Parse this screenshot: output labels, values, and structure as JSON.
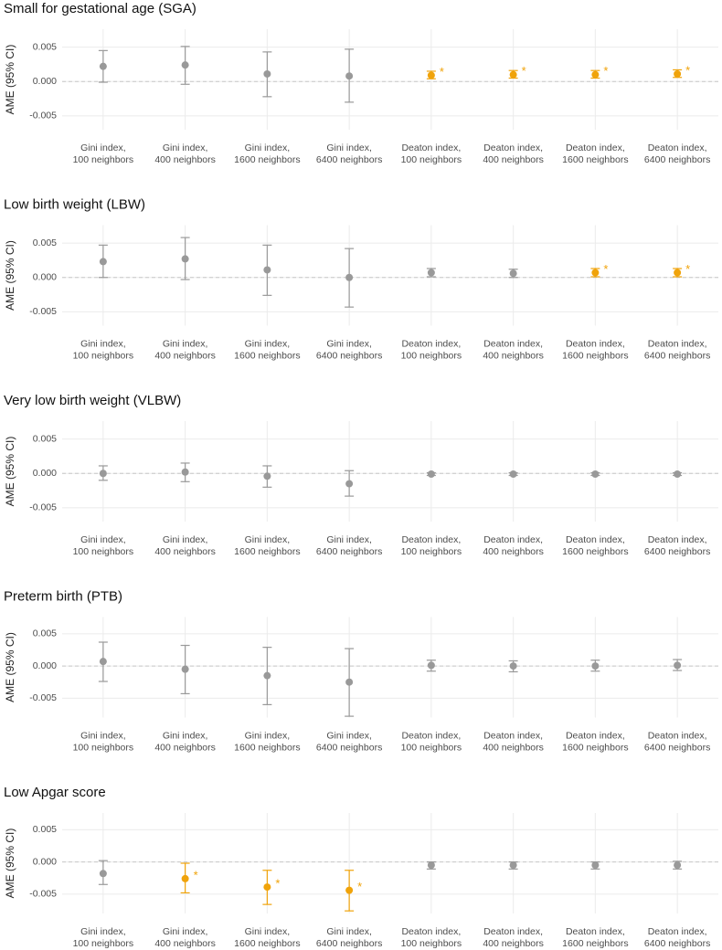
{
  "chart_data": [
    {
      "type": "errorbar",
      "title": "Small for gestational age (SGA)",
      "y_label": "AME (95% CI)",
      "categories": [
        [
          "Gini index,",
          "100 neighbors"
        ],
        [
          "Gini index,",
          "400 neighbors"
        ],
        [
          "Gini index,",
          "1600 neighbors"
        ],
        [
          "Gini index,",
          "6400 neighbors"
        ],
        [
          "Deaton index,",
          "100 neighbors"
        ],
        [
          "Deaton index,",
          "400 neighbors"
        ],
        [
          "Deaton index,",
          "1600 neighbors"
        ],
        [
          "Deaton index,",
          "6400 neighbors"
        ]
      ],
      "values": [
        0.0022,
        0.0024,
        0.0011,
        0.0008,
        0.0009,
        0.001,
        0.001,
        0.0011
      ],
      "lower": [
        -0.0001,
        -0.0004,
        -0.0022,
        -0.003,
        0.0004,
        0.0005,
        0.0005,
        0.0006
      ],
      "upper": [
        0.0045,
        0.0051,
        0.0043,
        0.0047,
        0.0015,
        0.0016,
        0.0016,
        0.0017
      ],
      "colors": [
        "#999999",
        "#999999",
        "#999999",
        "#999999",
        "#f0a30a",
        "#f0a30a",
        "#f0a30a",
        "#f0a30a"
      ],
      "markers": [
        null,
        null,
        null,
        null,
        "*",
        "*",
        "*",
        "*"
      ],
      "ylim": [
        -0.007,
        0.0076
      ],
      "yticks": [
        -0.005,
        {
          "value": 0,
          "label": "0.000"
        },
        0.005
      ],
      "grid": true
    },
    {
      "type": "errorbar",
      "title": "Low birth weight (LBW)",
      "y_label": "AME (95% CI)",
      "categories": [
        [
          "Gini index,",
          "100 neighbors"
        ],
        [
          "Gini index,",
          "400 neighbors"
        ],
        [
          "Gini index,",
          "1600 neighbors"
        ],
        [
          "Gini index,",
          "6400 neighbors"
        ],
        [
          "Deaton index,",
          "100 neighbors"
        ],
        [
          "Deaton index,",
          "400 neighbors"
        ],
        [
          "Deaton index,",
          "1600 neighbors"
        ],
        [
          "Deaton index,",
          "6400 neighbors"
        ]
      ],
      "values": [
        0.0023,
        0.0027,
        0.0011,
        0.0,
        0.0007,
        0.0006,
        0.0007,
        0.0007
      ],
      "lower": [
        0.0,
        -0.0003,
        -0.0026,
        -0.0043,
        0.0001,
        0.0,
        0.0001,
        0.0001
      ],
      "upper": [
        0.0047,
        0.0058,
        0.0047,
        0.0042,
        0.0013,
        0.0012,
        0.0013,
        0.0013
      ],
      "colors": [
        "#999999",
        "#999999",
        "#999999",
        "#999999",
        "#999999",
        "#999999",
        "#f0a30a",
        "#f0a30a"
      ],
      "markers": [
        null,
        null,
        null,
        null,
        null,
        null,
        "*",
        "*"
      ],
      "ylim": [
        -0.007,
        0.0076
      ],
      "yticks": [
        -0.005,
        {
          "value": 0,
          "label": "0.000"
        },
        0.005
      ],
      "grid": true
    },
    {
      "type": "errorbar",
      "title": "Very low birth weight (VLBW)",
      "y_label": "AME (95% CI)",
      "categories": [
        [
          "Gini index,",
          "100 neighbors"
        ],
        [
          "Gini index,",
          "400 neighbors"
        ],
        [
          "Gini index,",
          "1600 neighbors"
        ],
        [
          "Gini index,",
          "6400 neighbors"
        ],
        [
          "Deaton index,",
          "100 neighbors"
        ],
        [
          "Deaton index,",
          "400 neighbors"
        ],
        [
          "Deaton index,",
          "1600 neighbors"
        ],
        [
          "Deaton index,",
          "6400 neighbors"
        ]
      ],
      "values": [
        0.0,
        0.0002,
        -0.0004,
        -0.0015,
        -0.0001,
        -0.0001,
        -0.0001,
        -0.0001
      ],
      "lower": [
        -0.001,
        -0.0012,
        -0.002,
        -0.0033,
        -0.0003,
        -0.0003,
        -0.0003,
        -0.0003
      ],
      "upper": [
        0.0011,
        0.0015,
        0.0011,
        0.0004,
        0.0001,
        0.0001,
        0.0001,
        0.0001
      ],
      "colors": [
        "#999999",
        "#999999",
        "#999999",
        "#999999",
        "#999999",
        "#999999",
        "#999999",
        "#999999"
      ],
      "markers": [
        null,
        null,
        null,
        null,
        null,
        null,
        null,
        null
      ],
      "ylim": [
        -0.007,
        0.0076
      ],
      "yticks": [
        -0.005,
        {
          "value": 0,
          "label": "0.000"
        },
        0.005
      ],
      "grid": true
    },
    {
      "type": "errorbar",
      "title": "Preterm birth (PTB)",
      "y_label": "AME (95% CI)",
      "categories": [
        [
          "Gini index,",
          "100 neighbors"
        ],
        [
          "Gini index,",
          "400 neighbors"
        ],
        [
          "Gini index,",
          "1600 neighbors"
        ],
        [
          "Gini index,",
          "6400 neighbors"
        ],
        [
          "Deaton index,",
          "100 neighbors"
        ],
        [
          "Deaton index,",
          "400 neighbors"
        ],
        [
          "Deaton index,",
          "1600 neighbors"
        ],
        [
          "Deaton index,",
          "6400 neighbors"
        ]
      ],
      "values": [
        0.0007,
        -0.0005,
        -0.0015,
        -0.0025,
        0.0001,
        0.0,
        0.0,
        0.0001
      ],
      "lower": [
        -0.0024,
        -0.0043,
        -0.006,
        -0.0078,
        -0.0008,
        -0.0009,
        -0.0008,
        -0.0007
      ],
      "upper": [
        0.0037,
        0.0032,
        0.0029,
        0.0027,
        0.0009,
        0.0008,
        0.0009,
        0.001
      ],
      "colors": [
        "#999999",
        "#999999",
        "#999999",
        "#999999",
        "#999999",
        "#999999",
        "#999999",
        "#999999"
      ],
      "markers": [
        null,
        null,
        null,
        null,
        null,
        null,
        null,
        null
      ],
      "ylim": [
        -0.008,
        0.0076
      ],
      "yticks": [
        -0.005,
        {
          "value": 0,
          "label": "0.000"
        },
        0.005
      ],
      "grid": true
    },
    {
      "type": "errorbar",
      "title": "Low Apgar score",
      "y_label": "AME (95% CI)",
      "categories": [
        [
          "Gini index,",
          "100 neighbors"
        ],
        [
          "Gini index,",
          "400 neighbors"
        ],
        [
          "Gini index,",
          "1600 neighbors"
        ],
        [
          "Gini index,",
          "6400 neighbors"
        ],
        [
          "Deaton index,",
          "100 neighbors"
        ],
        [
          "Deaton index,",
          "400 neighbors"
        ],
        [
          "Deaton index,",
          "1600 neighbors"
        ],
        [
          "Deaton index,",
          "6400 neighbors"
        ]
      ],
      "values": [
        -0.0018,
        -0.0026,
        -0.0039,
        -0.0044,
        -0.0005,
        -0.0005,
        -0.0005,
        -0.0005
      ],
      "lower": [
        -0.0035,
        -0.0048,
        -0.0066,
        -0.0076,
        -0.0011,
        -0.0011,
        -0.0011,
        -0.0011
      ],
      "upper": [
        0.0002,
        -0.0002,
        -0.0013,
        -0.0013,
        0.0,
        0.0,
        0.0,
        0.0001
      ],
      "colors": [
        "#999999",
        "#f0a30a",
        "#f0a30a",
        "#f0a30a",
        "#999999",
        "#999999",
        "#999999",
        "#999999"
      ],
      "markers": [
        null,
        "*",
        "*",
        "*",
        null,
        null,
        null,
        null
      ],
      "ylim": [
        -0.008,
        0.0076
      ],
      "yticks": [
        -0.005,
        {
          "value": 0,
          "label": "0.000"
        },
        0.005
      ],
      "grid": true
    }
  ]
}
